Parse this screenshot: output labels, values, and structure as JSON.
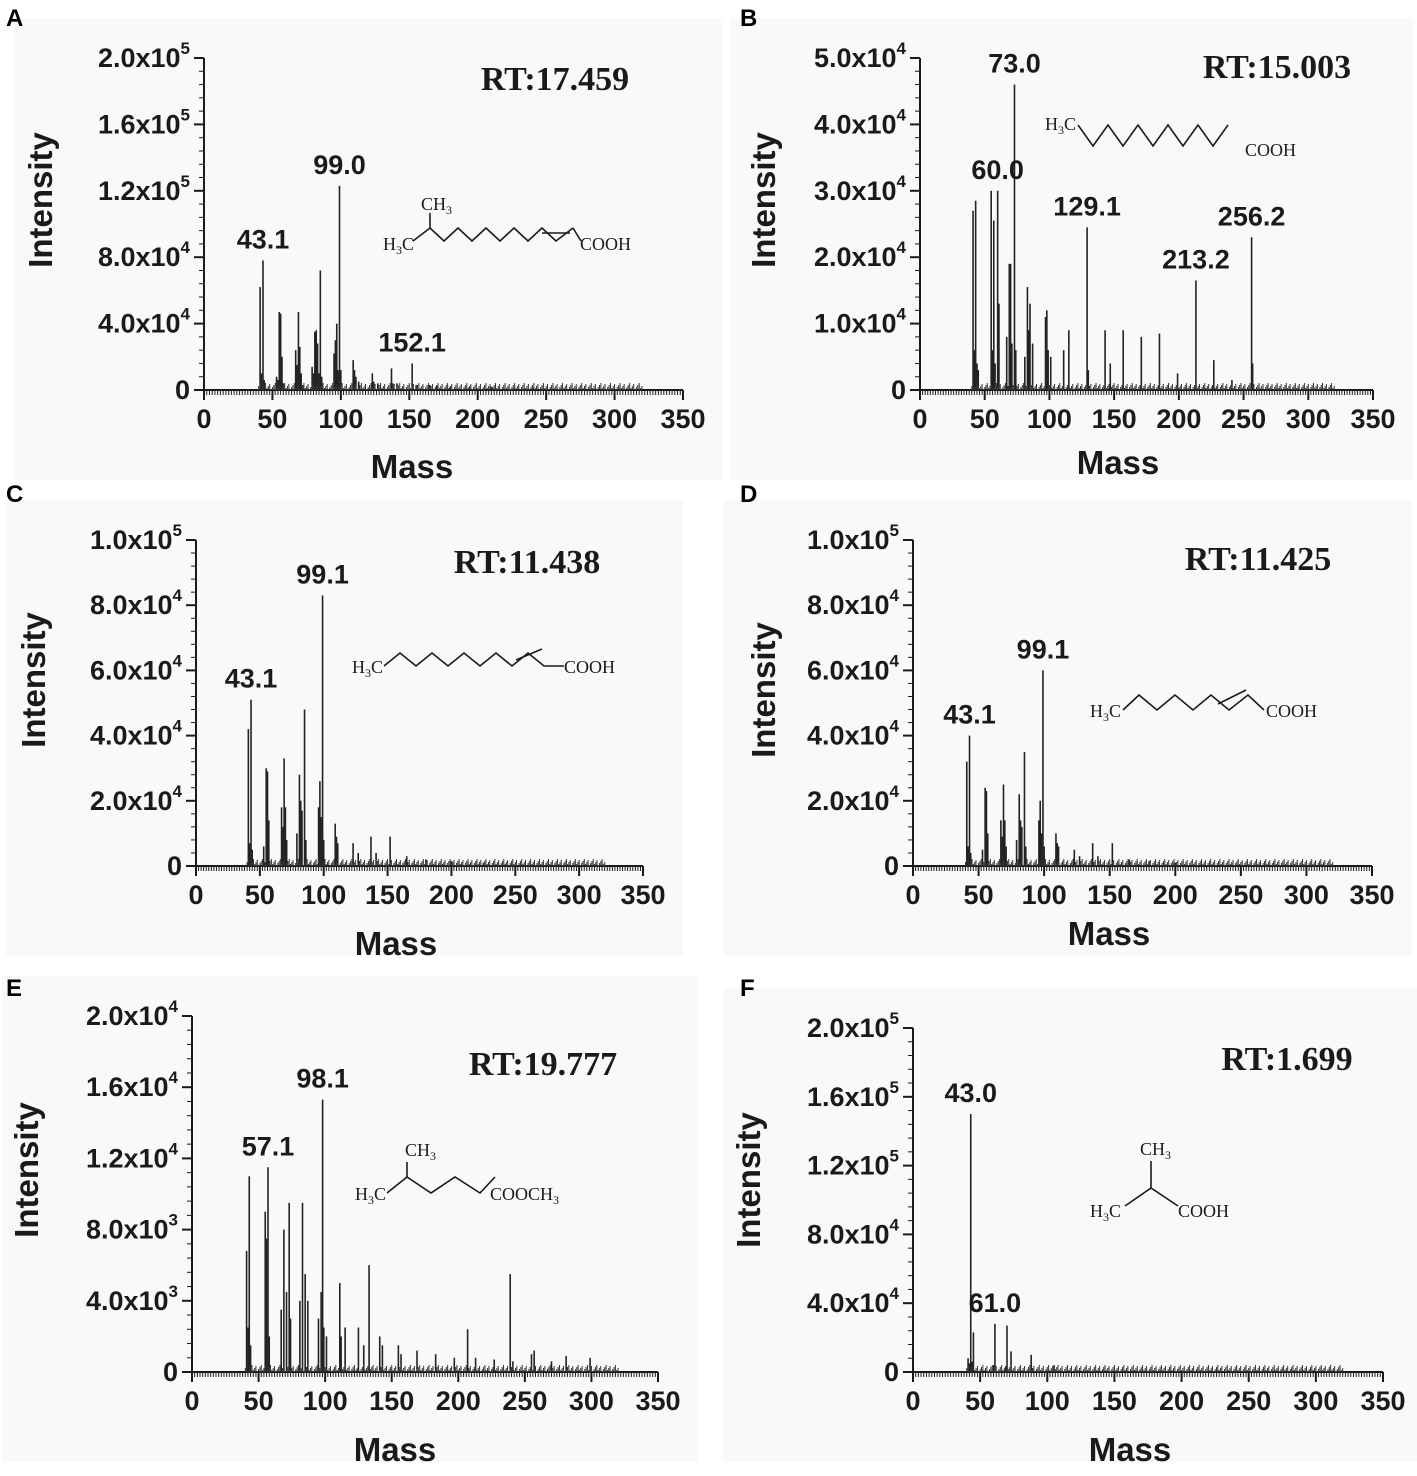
{
  "chart_data": [
    {
      "type": "bar",
      "panel": "A",
      "title": "RT:17.459",
      "xlabel": "Mass",
      "ylabel": "Intensity",
      "xlim": [
        0,
        350
      ],
      "ylim": [
        0,
        200000
      ],
      "xticks": [
        0,
        50,
        100,
        150,
        200,
        250,
        300,
        350
      ],
      "xtick_labels": [
        "0",
        "50",
        "100",
        "150",
        "200",
        "250",
        "300",
        "350"
      ],
      "yticks": [
        0,
        40000,
        80000,
        120000,
        160000,
        200000
      ],
      "ytick_labels": [
        {
          "mant": "0",
          "exp": ""
        },
        {
          "mant": "4.0x10",
          "exp": "4"
        },
        {
          "mant": "8.0x10",
          "exp": "4"
        },
        {
          "mant": "1.2x10",
          "exp": "5"
        },
        {
          "mant": "1.6x10",
          "exp": "5"
        },
        {
          "mant": "2.0x10",
          "exp": "5"
        }
      ],
      "peaks": [
        [
          41,
          62000
        ],
        [
          42,
          10000
        ],
        [
          43.1,
          78000
        ],
        [
          44,
          6000
        ],
        [
          53,
          8000
        ],
        [
          54,
          6000
        ],
        [
          55,
          47000
        ],
        [
          56,
          46000
        ],
        [
          57,
          20000
        ],
        [
          58,
          4000
        ],
        [
          67,
          24000
        ],
        [
          68,
          15000
        ],
        [
          69,
          47000
        ],
        [
          70,
          26000
        ],
        [
          71,
          10000
        ],
        [
          72,
          3000
        ],
        [
          79,
          14000
        ],
        [
          80,
          10000
        ],
        [
          81,
          35000
        ],
        [
          82,
          36000
        ],
        [
          83,
          28000
        ],
        [
          84,
          10000
        ],
        [
          85,
          72000
        ],
        [
          86,
          8000
        ],
        [
          95,
          22000
        ],
        [
          96,
          30000
        ],
        [
          97,
          40000
        ],
        [
          98,
          12000
        ],
        [
          99,
          123000
        ],
        [
          100,
          12000
        ],
        [
          109,
          18000
        ],
        [
          110,
          12000
        ],
        [
          111,
          8000
        ],
        [
          113,
          5000
        ],
        [
          123,
          10000
        ],
        [
          124,
          5000
        ],
        [
          127,
          4000
        ],
        [
          137,
          13000
        ],
        [
          138,
          4000
        ],
        [
          141,
          4000
        ],
        [
          152.1,
          16000
        ],
        [
          155,
          3000
        ],
        [
          165,
          3000
        ],
        [
          170,
          2500
        ],
        [
          180,
          2000
        ],
        [
          194,
          2000
        ],
        [
          210,
          2000
        ],
        [
          240,
          1000
        ]
      ],
      "labels": [
        {
          "x": 43.1,
          "text": "43.1"
        },
        {
          "x": 99.0,
          "text": "99.0"
        },
        {
          "x": 152.1,
          "text": "152.1"
        }
      ],
      "structure": {
        "methyl": "CH",
        "methyl_sub": "3",
        "h3c": "H",
        "h3c_sub": "3",
        "h3c_end": "C",
        "acid": "COOH"
      }
    },
    {
      "type": "bar",
      "panel": "B",
      "title": "RT:15.003",
      "xlabel": "Mass",
      "ylabel": "Intensity",
      "xlim": [
        0,
        350
      ],
      "ylim": [
        0,
        50000
      ],
      "xticks": [
        0,
        50,
        100,
        150,
        200,
        250,
        300,
        350
      ],
      "xtick_labels": [
        "0",
        "50",
        "100",
        "150",
        "200",
        "250",
        "300",
        "350"
      ],
      "yticks": [
        0,
        10000,
        20000,
        30000,
        40000,
        50000
      ],
      "ytick_labels": [
        {
          "mant": "0",
          "exp": ""
        },
        {
          "mant": "1.0x10",
          "exp": "4"
        },
        {
          "mant": "2.0x10",
          "exp": "4"
        },
        {
          "mant": "3.0x10",
          "exp": "4"
        },
        {
          "mant": "4.0x10",
          "exp": "4"
        },
        {
          "mant": "5.0x10",
          "exp": "4"
        }
      ],
      "peaks": [
        [
          41,
          27000
        ],
        [
          42,
          6000
        ],
        [
          43,
          28500
        ],
        [
          44,
          4000
        ],
        [
          45,
          3000
        ],
        [
          55,
          30000
        ],
        [
          56,
          6000
        ],
        [
          57,
          25500
        ],
        [
          58,
          4000
        ],
        [
          60,
          30000
        ],
        [
          61,
          13000
        ],
        [
          67,
          8000
        ],
        [
          69,
          19000
        ],
        [
          70,
          19000
        ],
        [
          71,
          7000
        ],
        [
          73,
          46000
        ],
        [
          74,
          6000
        ],
        [
          81,
          5000
        ],
        [
          83,
          15500
        ],
        [
          84,
          9000
        ],
        [
          85,
          13000
        ],
        [
          87,
          7000
        ],
        [
          97,
          11000
        ],
        [
          98,
          12000
        ],
        [
          99,
          6000
        ],
        [
          101,
          5000
        ],
        [
          111,
          6000
        ],
        [
          115,
          9000
        ],
        [
          129.1,
          24500
        ],
        [
          130,
          3000
        ],
        [
          143,
          9000
        ],
        [
          147,
          4000
        ],
        [
          157,
          9000
        ],
        [
          171,
          8000
        ],
        [
          185,
          8500
        ],
        [
          199,
          2500
        ],
        [
          213.2,
          16500
        ],
        [
          227,
          4500
        ],
        [
          241,
          1500
        ],
        [
          256.2,
          23000
        ],
        [
          257,
          4000
        ]
      ],
      "labels": [
        {
          "x": 60.0,
          "text": "60.0"
        },
        {
          "x": 73.0,
          "text": "73.0"
        },
        {
          "x": 129.1,
          "text": "129.1"
        },
        {
          "x": 213.2,
          "text": "213.2"
        },
        {
          "x": 256.2,
          "text": "256.2"
        }
      ],
      "structure": {
        "h3c": "H",
        "h3c_sub": "3",
        "h3c_end": "C",
        "acid": "COOH"
      }
    },
    {
      "type": "bar",
      "panel": "C",
      "title": "RT:11.438",
      "xlabel": "Mass",
      "ylabel": "Intensity",
      "xlim": [
        0,
        350
      ],
      "ylim": [
        0,
        100000
      ],
      "xticks": [
        0,
        50,
        100,
        150,
        200,
        250,
        300,
        350
      ],
      "xtick_labels": [
        "0",
        "50",
        "100",
        "150",
        "200",
        "250",
        "300",
        "350"
      ],
      "yticks": [
        0,
        20000,
        40000,
        60000,
        80000,
        100000
      ],
      "ytick_labels": [
        {
          "mant": "0",
          "exp": ""
        },
        {
          "mant": "2.0x10",
          "exp": "4"
        },
        {
          "mant": "4.0x10",
          "exp": "4"
        },
        {
          "mant": "6.0x10",
          "exp": "4"
        },
        {
          "mant": "8.0x10",
          "exp": "4"
        },
        {
          "mant": "1.0x10",
          "exp": "5"
        }
      ],
      "peaks": [
        [
          41,
          42000
        ],
        [
          42,
          7000
        ],
        [
          43.1,
          51000
        ],
        [
          44,
          5000
        ],
        [
          53,
          6000
        ],
        [
          55,
          30000
        ],
        [
          56,
          29000
        ],
        [
          57,
          14000
        ],
        [
          67,
          18000
        ],
        [
          68,
          12000
        ],
        [
          69,
          33000
        ],
        [
          70,
          18000
        ],
        [
          71,
          8000
        ],
        [
          79,
          10000
        ],
        [
          81,
          28000
        ],
        [
          82,
          20000
        ],
        [
          83,
          17000
        ],
        [
          85,
          48000
        ],
        [
          86,
          8000
        ],
        [
          96,
          18000
        ],
        [
          97,
          26000
        ],
        [
          98,
          15000
        ],
        [
          99.1,
          83000
        ],
        [
          100,
          8000
        ],
        [
          109,
          13000
        ],
        [
          110,
          9000
        ],
        [
          111,
          7000
        ],
        [
          123,
          7000
        ],
        [
          127,
          4000
        ],
        [
          137,
          9000
        ],
        [
          141,
          4000
        ],
        [
          152,
          9000
        ],
        [
          165,
          3000
        ],
        [
          180,
          2000
        ],
        [
          200,
          1500
        ],
        [
          225,
          1000
        ]
      ],
      "labels": [
        {
          "x": 43.1,
          "text": "43.1"
        },
        {
          "x": 99.1,
          "text": "99.1"
        }
      ],
      "structure": {
        "h3c": "H",
        "h3c_sub": "3",
        "h3c_end": "C",
        "acid": "COOH"
      }
    },
    {
      "type": "bar",
      "panel": "D",
      "title": "RT:11.425",
      "xlabel": "Mass",
      "ylabel": "Intensity",
      "xlim": [
        0,
        350
      ],
      "ylim": [
        0,
        100000
      ],
      "xticks": [
        0,
        50,
        100,
        150,
        200,
        250,
        300,
        350
      ],
      "xtick_labels": [
        "0",
        "50",
        "100",
        "150",
        "200",
        "250",
        "300",
        "350"
      ],
      "yticks": [
        0,
        20000,
        40000,
        60000,
        80000,
        100000
      ],
      "ytick_labels": [
        {
          "mant": "0",
          "exp": ""
        },
        {
          "mant": "2.0x10",
          "exp": "4"
        },
        {
          "mant": "4.0x10",
          "exp": "4"
        },
        {
          "mant": "6.0x10",
          "exp": "4"
        },
        {
          "mant": "8.0x10",
          "exp": "4"
        },
        {
          "mant": "1.0x10",
          "exp": "5"
        }
      ],
      "peaks": [
        [
          41,
          32000
        ],
        [
          42,
          6000
        ],
        [
          43.1,
          40000
        ],
        [
          44,
          4000
        ],
        [
          53,
          5000
        ],
        [
          55,
          24000
        ],
        [
          56,
          23000
        ],
        [
          57,
          10000
        ],
        [
          67,
          14000
        ],
        [
          68,
          9000
        ],
        [
          69,
          25000
        ],
        [
          70,
          14000
        ],
        [
          71,
          6000
        ],
        [
          79,
          8000
        ],
        [
          81,
          22000
        ],
        [
          82,
          14000
        ],
        [
          83,
          12000
        ],
        [
          85,
          35000
        ],
        [
          86,
          6000
        ],
        [
          96,
          14000
        ],
        [
          97,
          20000
        ],
        [
          98,
          10000
        ],
        [
          99.1,
          60000
        ],
        [
          100,
          6000
        ],
        [
          109,
          10000
        ],
        [
          110,
          7000
        ],
        [
          111,
          6000
        ],
        [
          123,
          5000
        ],
        [
          127,
          3000
        ],
        [
          137,
          7000
        ],
        [
          141,
          3000
        ],
        [
          152,
          7000
        ],
        [
          165,
          2000
        ],
        [
          180,
          1500
        ],
        [
          200,
          1000
        ]
      ],
      "labels": [
        {
          "x": 43.1,
          "text": "43.1"
        },
        {
          "x": 99.1,
          "text": "99.1"
        }
      ],
      "structure": {
        "h3c": "H",
        "h3c_sub": "3",
        "h3c_end": "C",
        "acid": "COOH"
      }
    },
    {
      "type": "bar",
      "panel": "E",
      "title": "RT:19.777",
      "xlabel": "Mass",
      "ylabel": "Intensity",
      "xlim": [
        0,
        350
      ],
      "ylim": [
        0,
        20000
      ],
      "xticks": [
        0,
        50,
        100,
        150,
        200,
        250,
        300,
        350
      ],
      "xtick_labels": [
        "0",
        "50",
        "100",
        "150",
        "200",
        "250",
        "300",
        "350"
      ],
      "yticks": [
        0,
        4000,
        8000,
        12000,
        16000,
        20000
      ],
      "ytick_labels": [
        {
          "mant": "0",
          "exp": ""
        },
        {
          "mant": "4.0x10",
          "exp": "3"
        },
        {
          "mant": "8.0x10",
          "exp": "3"
        },
        {
          "mant": "1.2x10",
          "exp": "4"
        },
        {
          "mant": "1.6x10",
          "exp": "4"
        },
        {
          "mant": "2.0x10",
          "exp": "4"
        }
      ],
      "peaks": [
        [
          41,
          6800
        ],
        [
          42,
          2500
        ],
        [
          43,
          11000
        ],
        [
          44,
          1500
        ],
        [
          55,
          9000
        ],
        [
          56,
          7500
        ],
        [
          57.1,
          11500
        ],
        [
          58,
          2000
        ],
        [
          67,
          3500
        ],
        [
          69,
          8000
        ],
        [
          71,
          4500
        ],
        [
          73,
          9500
        ],
        [
          74,
          3000
        ],
        [
          81,
          4000
        ],
        [
          83,
          9500
        ],
        [
          85,
          5500
        ],
        [
          87,
          4000
        ],
        [
          95,
          3000
        ],
        [
          97,
          4500
        ],
        [
          98.1,
          15300
        ],
        [
          99,
          2500
        ],
        [
          101,
          2000
        ],
        [
          111,
          5000
        ],
        [
          112,
          2000
        ],
        [
          115,
          2500
        ],
        [
          125,
          2500
        ],
        [
          129,
          1500
        ],
        [
          133,
          6000
        ],
        [
          141,
          2000
        ],
        [
          143,
          1500
        ],
        [
          155,
          1500
        ],
        [
          157,
          1000
        ],
        [
          169,
          1200
        ],
        [
          183,
          1000
        ],
        [
          197,
          800
        ],
        [
          207,
          2400
        ],
        [
          213,
          800
        ],
        [
          227,
          700
        ],
        [
          239,
          5500
        ],
        [
          241,
          600
        ],
        [
          255,
          1000
        ],
        [
          257,
          1200
        ],
        [
          270,
          600
        ],
        [
          281,
          900
        ],
        [
          299,
          800
        ]
      ],
      "labels": [
        {
          "x": 57.1,
          "text": "57.1"
        },
        {
          "x": 98.1,
          "text": "98.1"
        }
      ],
      "structure": {
        "methyl": "CH",
        "methyl_sub": "3",
        "h3c": "H",
        "h3c_sub": "3",
        "h3c_end": "C",
        "ester": "COOCH",
        "ester_sub": "3"
      }
    },
    {
      "type": "bar",
      "panel": "F",
      "title": "RT:1.699",
      "xlabel": "Mass",
      "ylabel": "Intensity",
      "xlim": [
        0,
        350
      ],
      "ylim": [
        0,
        200000
      ],
      "xticks": [
        0,
        50,
        100,
        150,
        200,
        250,
        300,
        350
      ],
      "xtick_labels": [
        "0",
        "50",
        "100",
        "150",
        "200",
        "250",
        "300",
        "350"
      ],
      "yticks": [
        0,
        40000,
        80000,
        120000,
        160000,
        200000
      ],
      "ytick_labels": [
        {
          "mant": "0",
          "exp": ""
        },
        {
          "mant": "4.0x10",
          "exp": "4"
        },
        {
          "mant": "8.0x10",
          "exp": "4"
        },
        {
          "mant": "1.2x10",
          "exp": "5"
        },
        {
          "mant": "1.6x10",
          "exp": "5"
        },
        {
          "mant": "2.0x10",
          "exp": "5"
        }
      ],
      "peaks": [
        [
          41,
          8000
        ],
        [
          42,
          5000
        ],
        [
          43.0,
          150000
        ],
        [
          44,
          6000
        ],
        [
          45,
          23000
        ],
        [
          60,
          4000
        ],
        [
          61.0,
          28000
        ],
        [
          69,
          3000
        ],
        [
          70,
          27000
        ],
        [
          73,
          12000
        ],
        [
          88,
          10000
        ],
        [
          89,
          2000
        ],
        [
          105,
          4000
        ]
      ],
      "labels": [
        {
          "x": 43.0,
          "text": "43.0"
        },
        {
          "x": 61.0,
          "text": "61.0"
        }
      ],
      "structure": {
        "methyl": "CH",
        "methyl_sub": "3",
        "h3c": "H",
        "h3c_sub": "3",
        "h3c_end": "C",
        "acid": "COOH"
      }
    }
  ]
}
